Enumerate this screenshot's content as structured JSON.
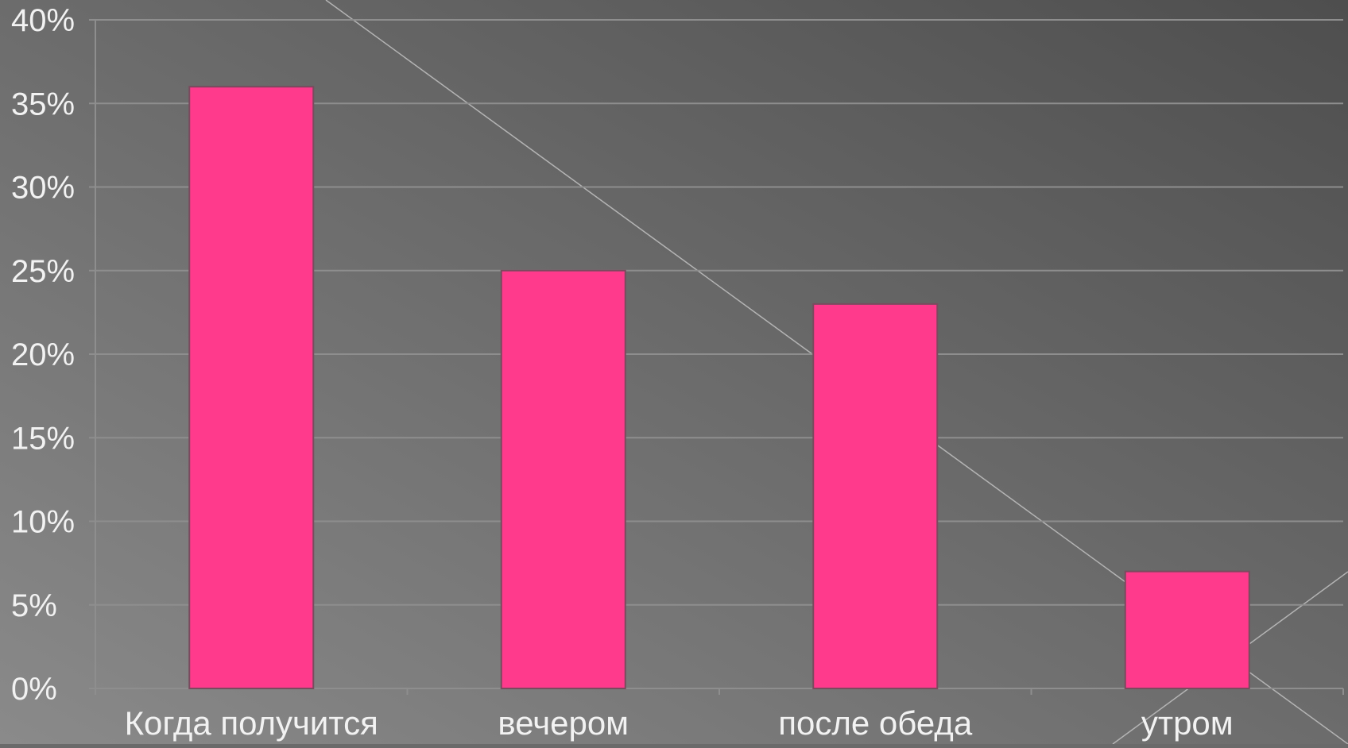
{
  "chart_data": {
    "type": "bar",
    "categories": [
      "Когда получится",
      "вечером",
      "после обеда",
      "утром"
    ],
    "values": [
      36,
      25,
      23,
      7
    ],
    "value_format": "percent",
    "ylim": [
      0,
      40
    ],
    "yticks": [
      0,
      5,
      10,
      15,
      20,
      25,
      30,
      35,
      40
    ],
    "ytick_labels": [
      "0%",
      "5%",
      "10%",
      "15%",
      "20%",
      "25%",
      "30%",
      "35%",
      "40%"
    ],
    "grid": true,
    "legend": "none",
    "title": "",
    "xlabel": "",
    "ylabel": ""
  },
  "colors": {
    "bar": "#ff3a8c",
    "bar_edge": "#7a4a5e",
    "text": "#f2f2f2",
    "grid": "#8e8e8e",
    "background_light": "#8a8a8a",
    "background_dark": "#555555"
  }
}
